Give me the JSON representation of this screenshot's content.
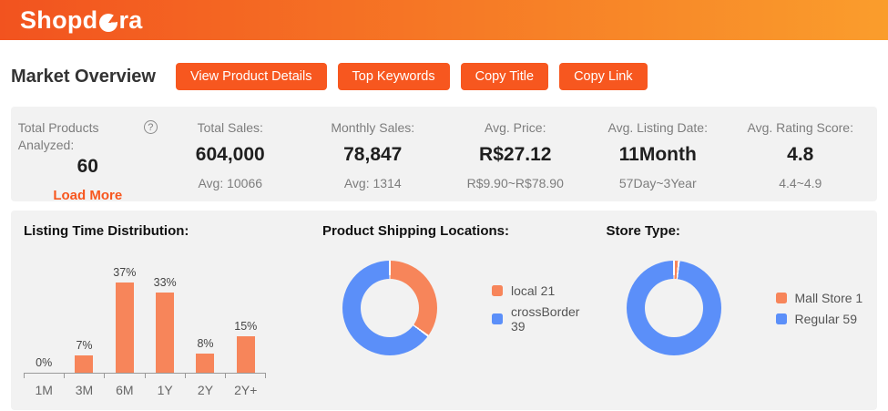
{
  "brand": {
    "logo_prefix": "Shopd",
    "logo_suffix": "ra",
    "name": "Shopdora"
  },
  "colors": {
    "accent": "#F7571F",
    "header_gradient_start": "#F2531F",
    "header_gradient_end": "#FA9D2C",
    "panel_bg": "#F2F2F2",
    "chart_orange": "#F7855A",
    "chart_blue": "#5B8FF9"
  },
  "toolbar": {
    "title": "Market Overview",
    "buttons": {
      "view_product_details": "View Product Details",
      "top_keywords": "Top Keywords",
      "copy_title": "Copy Title",
      "copy_link": "Copy Link"
    }
  },
  "stats": {
    "items": [
      {
        "label": "Total Products Analyzed:",
        "help": "?",
        "value": "60",
        "link": "Load More"
      },
      {
        "label": "Total Sales:",
        "value": "604,000",
        "sub": "Avg: 10066"
      },
      {
        "label": "Monthly Sales:",
        "value": "78,847",
        "sub": "Avg: 1314"
      },
      {
        "label": "Avg. Price:",
        "value": "R$27.12",
        "sub": "R$9.90~R$78.90"
      },
      {
        "label": "Avg. Listing Date:",
        "value": "11Month",
        "sub": "57Day~3Year"
      },
      {
        "label": "Avg. Rating Score:",
        "value": "4.8",
        "sub": "4.4~4.9"
      }
    ]
  },
  "chart_data": [
    {
      "type": "bar",
      "title": "Listing Time Distribution:",
      "categories": [
        "1M",
        "3M",
        "6M",
        "1Y",
        "2Y",
        "2Y+"
      ],
      "values": [
        0,
        7,
        37,
        33,
        8,
        15
      ],
      "labels": [
        "0%",
        "7%",
        "37%",
        "33%",
        "8%",
        "15%"
      ],
      "color": "#F7855A",
      "ylim": [
        0,
        40
      ],
      "grid": false,
      "unit": "percent"
    },
    {
      "type": "pie",
      "title": "Product Shipping Locations:",
      "categories": [
        "local",
        "crossBorder"
      ],
      "values": [
        21,
        39
      ],
      "colors": [
        "#F7855A",
        "#5B8FF9"
      ],
      "legend": [
        "local 21",
        "crossBorder 39"
      ],
      "legend_position": "right",
      "donut": true
    },
    {
      "type": "pie",
      "title": "Store Type:",
      "categories": [
        "Mall Store",
        "Regular"
      ],
      "values": [
        1,
        59
      ],
      "colors": [
        "#F7855A",
        "#5B8FF9"
      ],
      "legend": [
        "Mall Store 1",
        "Regular 59"
      ],
      "legend_position": "right",
      "donut": true
    }
  ]
}
